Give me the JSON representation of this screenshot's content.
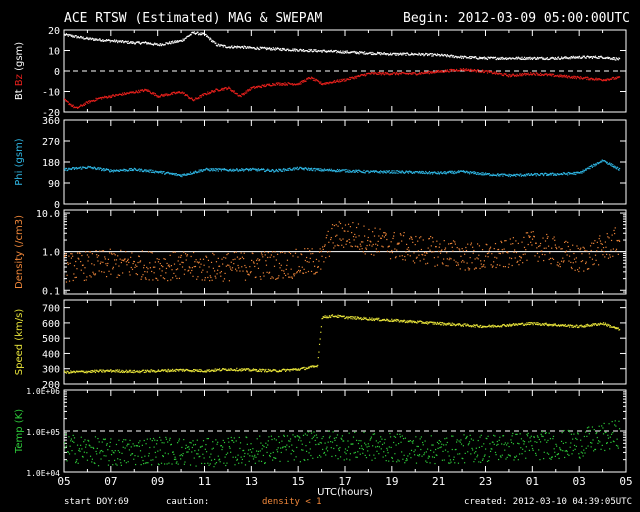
{
  "header": {
    "title": "ACE RTSW (Estimated) MAG & SWEPAM",
    "begin": "Begin: 2012-03-09 05:00:00UTC"
  },
  "footer": {
    "start_doy_label": "start DOY:",
    "start_doy": "69",
    "caution_label": "caution:",
    "caution_text": "density < 1",
    "created": "created: 2012-03-10 04:39:05UTC"
  },
  "colors": {
    "background": "#000000",
    "bt": "#ffffff",
    "bz": "#e8201c",
    "phi": "#2fb8e6",
    "density": "#f0873a",
    "speed": "#e8e43a",
    "temp": "#2ecc3a",
    "axes": "#ffffff"
  },
  "chart_data": [
    {
      "type": "scatter",
      "panel": "mag",
      "ylabel": [
        "Bt",
        "Bz",
        "(gsm)"
      ],
      "ylabel_colors": [
        "#ffffff",
        "#e8201c",
        "#ffffff"
      ],
      "ylim": [
        -20,
        20
      ],
      "yticks": [
        -20,
        -10,
        0,
        10,
        20
      ],
      "ref_lines": [
        0
      ],
      "series": [
        {
          "name": "Bt",
          "color": "#ffffff",
          "x": [
            0,
            0.5,
            1,
            2,
            3,
            3.5,
            4,
            5,
            5.5,
            6,
            6.5,
            7,
            7.5,
            8,
            9,
            10,
            11,
            12,
            13,
            14,
            15,
            16,
            17,
            18,
            19,
            20,
            21,
            22,
            23,
            23.7
          ],
          "y": [
            18,
            17,
            16,
            15,
            14,
            14,
            13,
            15,
            19,
            18,
            13,
            12,
            12,
            11.5,
            11,
            10.5,
            10,
            9.5,
            9,
            8.5,
            8.5,
            8,
            7,
            6.5,
            6.5,
            6.5,
            6.5,
            7,
            7,
            6
          ]
        },
        {
          "name": "Bz",
          "color": "#e8201c",
          "x": [
            0,
            0.5,
            1,
            1.5,
            2,
            3,
            3.5,
            4,
            5,
            5.5,
            6,
            6.5,
            7,
            7.5,
            8,
            9,
            10,
            10.5,
            11,
            12,
            13,
            14,
            15,
            16,
            17,
            18,
            19,
            20,
            21,
            22,
            23,
            23.7
          ],
          "y": [
            -14,
            -18,
            -15,
            -13,
            -12,
            -10,
            -9,
            -12,
            -10,
            -14,
            -11,
            -9,
            -8,
            -12,
            -8,
            -6,
            -6,
            -3,
            -6,
            -4,
            -1,
            -1,
            -1,
            0,
            1,
            0,
            -2,
            -1,
            -2,
            -3,
            -4,
            -3
          ]
        }
      ]
    },
    {
      "type": "scatter",
      "panel": "phi",
      "ylabel": [
        "Phi (gsm)"
      ],
      "ylabel_colors": [
        "#2fb8e6"
      ],
      "ylim": [
        0,
        360
      ],
      "yticks": [
        0,
        90,
        180,
        270,
        360
      ],
      "series": [
        {
          "name": "Phi",
          "color": "#2fb8e6",
          "x": [
            0,
            1,
            2,
            3,
            4,
            5,
            6,
            7,
            8,
            9,
            10,
            11,
            12,
            13,
            14,
            15,
            16,
            17,
            18,
            19,
            20,
            21,
            22,
            23,
            23.7
          ],
          "y": [
            150,
            160,
            145,
            150,
            140,
            125,
            150,
            148,
            150,
            145,
            155,
            148,
            145,
            140,
            140,
            138,
            135,
            140,
            130,
            125,
            128,
            130,
            135,
            190,
            150
          ]
        }
      ]
    },
    {
      "type": "scatter",
      "panel": "density",
      "ylabel": [
        "Density (/cm3)"
      ],
      "ylabel_colors": [
        "#f0873a"
      ],
      "yscale": "log",
      "ylim": [
        0.08,
        12
      ],
      "yticks": [
        0.1,
        1.0,
        10.0
      ],
      "ytick_labels": [
        "0.1",
        "1.0",
        "10.0"
      ],
      "ref_lines": [
        1.0
      ],
      "series": [
        {
          "name": "Density",
          "color": "#f0873a",
          "x": [
            0,
            2,
            4,
            6,
            8,
            10,
            11,
            11.5,
            12,
            13,
            14,
            15,
            16,
            17,
            18,
            19,
            20,
            21,
            22,
            23,
            23.7
          ],
          "y": [
            0.4,
            0.5,
            0.45,
            0.4,
            0.45,
            0.5,
            0.6,
            2.5,
            3,
            2,
            1.5,
            1.2,
            1.0,
            0.8,
            0.7,
            0.9,
            1.5,
            1.0,
            0.6,
            1.2,
            2
          ]
        }
      ]
    },
    {
      "type": "scatter",
      "panel": "speed",
      "ylabel": [
        "Speed (km/s)"
      ],
      "ylabel_colors": [
        "#e8e43a"
      ],
      "ylim": [
        200,
        750
      ],
      "yticks": [
        200,
        300,
        400,
        500,
        600,
        700
      ],
      "series": [
        {
          "name": "Speed",
          "color": "#e8e43a",
          "x": [
            0,
            1,
            2,
            3,
            4,
            5,
            6,
            7,
            8,
            9,
            10,
            10.8,
            11,
            11.5,
            12,
            13,
            14,
            15,
            16,
            17,
            18,
            19,
            20,
            21,
            22,
            23,
            23.7
          ],
          "y": [
            280,
            285,
            290,
            285,
            290,
            295,
            290,
            300,
            295,
            290,
            300,
            320,
            640,
            650,
            640,
            630,
            620,
            610,
            600,
            590,
            580,
            590,
            600,
            590,
            580,
            600,
            560
          ]
        }
      ]
    },
    {
      "type": "scatter",
      "panel": "temp",
      "ylabel": [
        "Temp (K)"
      ],
      "ylabel_colors": [
        "#2ecc3a"
      ],
      "yscale": "log",
      "ylim": [
        10000,
        1000000
      ],
      "yticks": [
        10000,
        100000,
        1000000
      ],
      "ytick_labels": [
        "1.0E+04",
        "1.0E+05",
        "1.0E+06"
      ],
      "ref_lines": [
        100000
      ],
      "series": [
        {
          "name": "Temp",
          "color": "#2ecc3a",
          "x": [
            0,
            2,
            4,
            6,
            8,
            10,
            11,
            12,
            14,
            16,
            18,
            20,
            22,
            23,
            23.7
          ],
          "y": [
            40000,
            30000,
            35000,
            30000,
            35000,
            40000,
            50000,
            45000,
            40000,
            35000,
            40000,
            45000,
            50000,
            70000,
            90000
          ]
        }
      ]
    }
  ],
  "x_axis": {
    "xlim": [
      0,
      24
    ],
    "tick_labels": [
      "05",
      "07",
      "09",
      "11",
      "13",
      "15",
      "17",
      "19",
      "21",
      "23",
      "01",
      "03",
      "05"
    ],
    "xlabel": "UTC(hours)"
  }
}
